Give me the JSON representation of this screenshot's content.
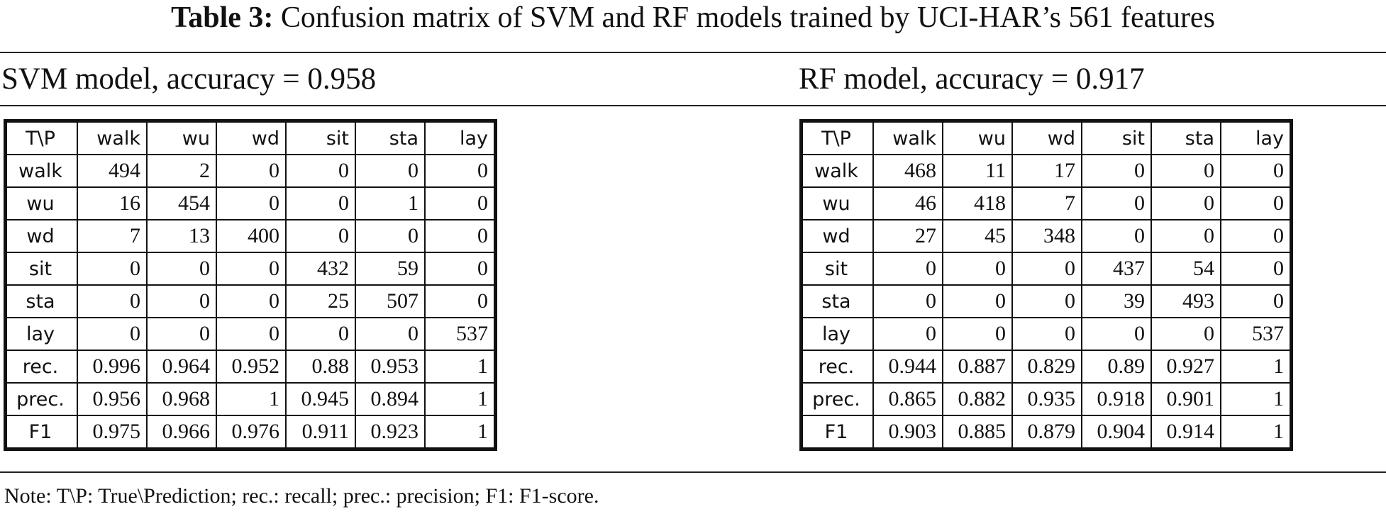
{
  "caption": {
    "label": "Table 3:",
    "text": "Confusion matrix of SVM and RF models trained by UCI-HAR’s 561 features"
  },
  "svm": {
    "title": "SVM model, accuracy = 0.958",
    "header": [
      "T\\P",
      "walk",
      "wu",
      "wd",
      "sit",
      "sta",
      "lay"
    ],
    "rows": [
      {
        "label": "walk",
        "values": [
          "494",
          "2",
          "0",
          "0",
          "0",
          "0"
        ]
      },
      {
        "label": "wu",
        "values": [
          "16",
          "454",
          "0",
          "0",
          "1",
          "0"
        ]
      },
      {
        "label": "wd",
        "values": [
          "7",
          "13",
          "400",
          "0",
          "0",
          "0"
        ]
      },
      {
        "label": "sit",
        "values": [
          "0",
          "0",
          "0",
          "432",
          "59",
          "0"
        ]
      },
      {
        "label": "sta",
        "values": [
          "0",
          "0",
          "0",
          "25",
          "507",
          "0"
        ]
      },
      {
        "label": "lay",
        "values": [
          "0",
          "0",
          "0",
          "0",
          "0",
          "537"
        ]
      },
      {
        "label": "rec.",
        "values": [
          "0.996",
          "0.964",
          "0.952",
          "0.88",
          "0.953",
          "1"
        ]
      },
      {
        "label": "prec.",
        "values": [
          "0.956",
          "0.968",
          "1",
          "0.945",
          "0.894",
          "1"
        ]
      },
      {
        "label": "F1",
        "values": [
          "0.975",
          "0.966",
          "0.976",
          "0.911",
          "0.923",
          "1"
        ]
      }
    ]
  },
  "rf": {
    "title": "RF model, accuracy = 0.917",
    "header": [
      "T\\P",
      "walk",
      "wu",
      "wd",
      "sit",
      "sta",
      "lay"
    ],
    "rows": [
      {
        "label": "walk",
        "values": [
          "468",
          "11",
          "17",
          "0",
          "0",
          "0"
        ]
      },
      {
        "label": "wu",
        "values": [
          "46",
          "418",
          "7",
          "0",
          "0",
          "0"
        ]
      },
      {
        "label": "wd",
        "values": [
          "27",
          "45",
          "348",
          "0",
          "0",
          "0"
        ]
      },
      {
        "label": "sit",
        "values": [
          "0",
          "0",
          "0",
          "437",
          "54",
          "0"
        ]
      },
      {
        "label": "sta",
        "values": [
          "0",
          "0",
          "0",
          "39",
          "493",
          "0"
        ]
      },
      {
        "label": "lay",
        "values": [
          "0",
          "0",
          "0",
          "0",
          "0",
          "537"
        ]
      },
      {
        "label": "rec.",
        "values": [
          "0.944",
          "0.887",
          "0.829",
          "0.89",
          "0.927",
          "1"
        ]
      },
      {
        "label": "prec.",
        "values": [
          "0.865",
          "0.882",
          "0.935",
          "0.918",
          "0.901",
          "1"
        ]
      },
      {
        "label": "F1",
        "values": [
          "0.903",
          "0.885",
          "0.879",
          "0.904",
          "0.914",
          "1"
        ]
      }
    ]
  },
  "note": "Note: T\\P: True\\Prediction; rec.: recall; prec.: precision; F1: F1-score."
}
